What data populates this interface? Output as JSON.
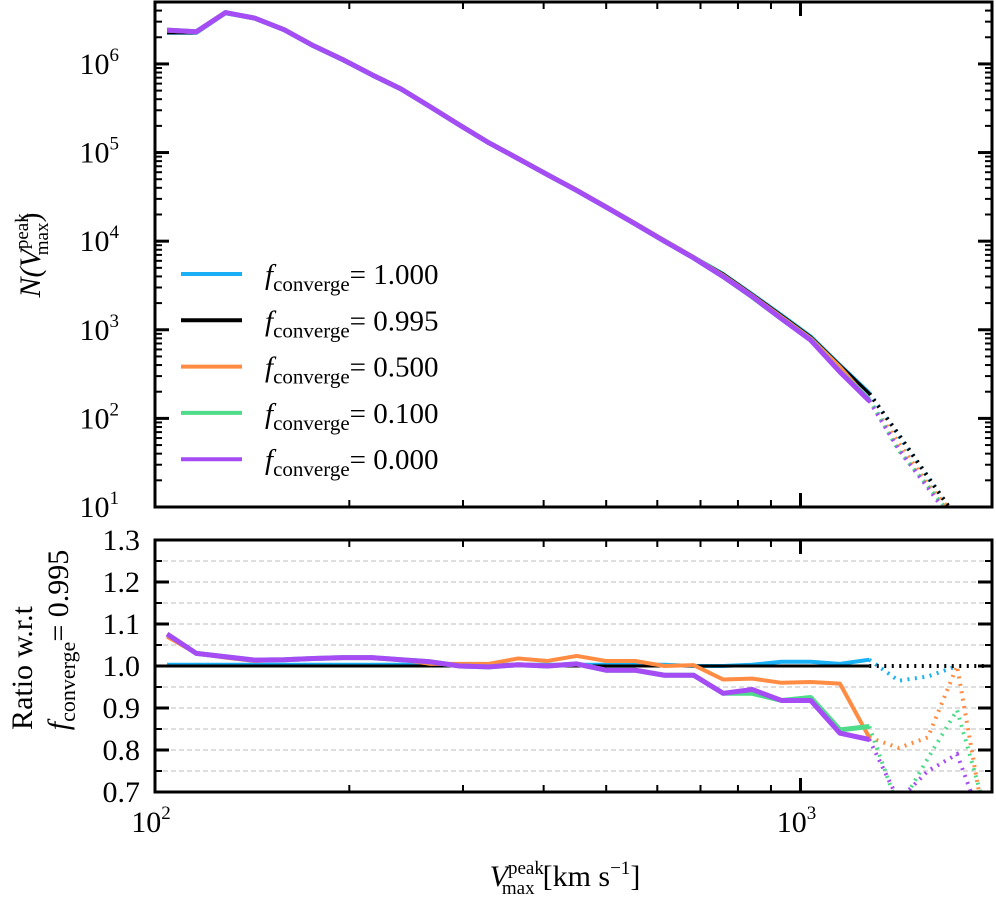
{
  "chart_data": [
    {
      "type": "line",
      "panel": "top",
      "ylabel": "N(V_max^peak)",
      "ylabel_main": "N(",
      "ylabel_sym": "V",
      "ylabel_sup": "peak",
      "ylabel_sub": "max",
      "ylabel_close": ")",
      "yscale": "log",
      "ylim": [
        10,
        5000000
      ],
      "yticks": [
        10,
        100,
        1000,
        10000,
        100000,
        1000000
      ],
      "ytick_exps": [
        "1",
        "2",
        "3",
        "4",
        "5",
        "6"
      ],
      "legend": {
        "placement": "center-left",
        "entries": [
          {
            "prefix": "f",
            "sub": "converge",
            "value": "= 1.000",
            "color": "#19b0f5"
          },
          {
            "prefix": "f",
            "sub": "converge",
            "value": "= 0.995",
            "color": "#000000"
          },
          {
            "prefix": "f",
            "sub": "converge",
            "value": "= 0.500",
            "color": "#ff8c42"
          },
          {
            "prefix": "f",
            "sub": "converge",
            "value": "= 0.100",
            "color": "#4fdc8a"
          },
          {
            "prefix": "f",
            "sub": "converge",
            "value": "= 0.000",
            "color": "#a64cf5"
          }
        ]
      },
      "reference_counts": [
        2240000,
        2240000,
        3720000,
        3240000,
        2400000,
        1580000,
        1100000,
        741000,
        513000,
        324000,
        204000,
        129000,
        85100,
        56200,
        37200,
        24500,
        15800,
        10200,
        6610,
        4270,
        2510,
        1450,
        832,
        398,
        191,
        66,
        22,
        7.4,
        2.5
      ],
      "note_series_counts": "each series N = reference_counts (f_converge=0.995) x its ratio in the bottom panel",
      "solid_until_index": 24
    },
    {
      "type": "line",
      "panel": "bottom",
      "ylabel_line1": "Ratio w.r.t",
      "ylabel_prefix": "f",
      "ylabel_sub": "converge",
      "ylabel_value": "= 0.995",
      "ylim": [
        0.7,
        1.3
      ],
      "yticks": [
        "0.7",
        "0.8",
        "0.9",
        "1.0",
        "1.1",
        "1.2",
        "1.3"
      ],
      "grid": "horizontal dashed every 0.05",
      "xlabel_sym": "V",
      "xlabel_sup": "peak",
      "xlabel_sub": "max",
      "xlabel_units": "[km s",
      "xlabel_units_exp": "−1",
      "xlabel_close": "]",
      "xscale": "log",
      "xlim": [
        100,
        1980
      ],
      "xticks": [
        100,
        1000
      ],
      "xtick_exps": [
        "2",
        "3"
      ],
      "x": [
        104.4,
        115.9,
        128.6,
        142.8,
        158.5,
        175.9,
        195.3,
        216.8,
        240.6,
        267.1,
        296.5,
        329.1,
        365.3,
        405.5,
        450.1,
        499.6,
        554.6,
        615.6,
        683.3,
        758.5,
        841.9,
        934.5,
        1037,
        1151,
        1278,
        1419,
        1575,
        1748,
        1940
      ],
      "solid_until_index": 24,
      "series": [
        {
          "name": "f_converge = 1.000",
          "color": "#19b0f5",
          "values": [
            1.003,
            1.003,
            1.003,
            1.003,
            1.003,
            1.003,
            1.003,
            1.003,
            1.003,
            1.003,
            1.003,
            1.003,
            1.003,
            1.003,
            1.003,
            1.003,
            1.003,
            1.003,
            1.0,
            1.0,
            1.003,
            1.01,
            1.01,
            1.005,
            1.015,
            0.965,
            0.975,
            1.0,
            null
          ]
        },
        {
          "name": "f_converge = 0.995",
          "color": "#000000",
          "values": [
            1,
            1,
            1,
            1,
            1,
            1,
            1,
            1,
            1,
            1,
            1,
            1,
            1,
            1,
            1,
            1,
            1,
            1,
            1,
            1,
            1,
            1,
            1,
            1,
            1,
            1,
            1,
            1,
            1
          ]
        },
        {
          "name": "f_converge = 0.500",
          "color": "#ff8c42",
          "values": [
            1.07,
            1.03,
            1.02,
            1.012,
            1.015,
            1.018,
            1.02,
            1.02,
            1.015,
            1.005,
            1.005,
            1.005,
            1.018,
            1.012,
            1.024,
            1.012,
            1.012,
            1.0,
            1.002,
            0.968,
            0.97,
            0.96,
            0.962,
            0.958,
            0.83,
            0.805,
            0.83,
            1.0,
            0.6
          ]
        },
        {
          "name": "f_converge = 0.100",
          "color": "#4fdc8a",
          "values": [
            1.076,
            1.03,
            1.022,
            1.014,
            1.015,
            1.018,
            1.02,
            1.02,
            1.015,
            1.01,
            1.0,
            0.998,
            1.003,
            1.0,
            1.005,
            0.99,
            0.99,
            0.978,
            0.978,
            0.935,
            0.935,
            0.918,
            0.925,
            0.848,
            0.856,
            0.66,
            0.78,
            0.895,
            0.65
          ]
        },
        {
          "name": "f_converge = 0.000",
          "color": "#a64cf5",
          "values": [
            1.076,
            1.03,
            1.022,
            1.014,
            1.015,
            1.018,
            1.02,
            1.02,
            1.015,
            1.01,
            1.0,
            0.998,
            1.003,
            1.0,
            1.005,
            0.99,
            0.99,
            0.978,
            0.978,
            0.935,
            0.944,
            0.918,
            0.918,
            0.84,
            0.825,
            0.68,
            0.75,
            0.79,
            0.6
          ]
        }
      ]
    }
  ]
}
